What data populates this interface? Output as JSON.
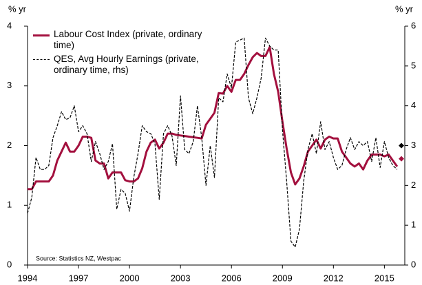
{
  "chart_data": {
    "type": "line",
    "ylabel": "% yr",
    "y2label": "% yr",
    "source": "Source: Statistics NZ, Westpac",
    "x": [
      1994,
      1994.25,
      1994.5,
      1994.75,
      1995,
      1995.25,
      1995.5,
      1995.75,
      1996,
      1996.25,
      1996.5,
      1996.75,
      1997,
      1997.25,
      1997.5,
      1997.75,
      1998,
      1998.25,
      1998.5,
      1998.75,
      1999,
      1999.25,
      1999.5,
      1999.75,
      2000,
      2000.25,
      2000.5,
      2000.75,
      2001,
      2001.25,
      2001.5,
      2001.75,
      2002,
      2002.25,
      2002.5,
      2002.75,
      2003,
      2003.25,
      2003.5,
      2003.75,
      2004,
      2004.25,
      2004.5,
      2004.75,
      2005,
      2005.25,
      2005.5,
      2005.75,
      2006,
      2006.25,
      2006.5,
      2006.75,
      2007,
      2007.25,
      2007.5,
      2007.75,
      2008,
      2008.25,
      2008.5,
      2008.75,
      2009,
      2009.25,
      2009.5,
      2009.75,
      2010,
      2010.25,
      2010.5,
      2010.75,
      2011,
      2011.25,
      2011.5,
      2011.75,
      2012,
      2012.25,
      2012.5,
      2012.75,
      2013,
      2013.25,
      2013.5,
      2013.75,
      2014,
      2014.25,
      2014.5,
      2014.75,
      2015,
      2015.25,
      2015.5,
      2015.75
    ],
    "series": [
      {
        "name": "Labour Cost Index (private, ordinary time)",
        "color": "#a3103e",
        "style": "solid",
        "axis": "y",
        "values": [
          1.27,
          1.27,
          1.4,
          1.4,
          1.4,
          1.4,
          1.5,
          1.75,
          1.9,
          2.05,
          1.9,
          1.9,
          2.0,
          2.15,
          2.15,
          2.13,
          1.75,
          1.7,
          1.7,
          1.45,
          1.55,
          1.55,
          1.55,
          1.42,
          1.4,
          1.4,
          1.45,
          1.62,
          1.9,
          2.05,
          2.1,
          1.95,
          2.05,
          2.2,
          2.2,
          2.18,
          2.17,
          2.16,
          2.15,
          2.14,
          2.13,
          2.12,
          2.35,
          2.45,
          2.55,
          2.88,
          2.87,
          3.0,
          2.9,
          3.1,
          3.1,
          3.2,
          3.35,
          3.48,
          3.55,
          3.5,
          3.5,
          3.65,
          3.2,
          2.9,
          2.4,
          1.95,
          1.55,
          1.35,
          1.45,
          1.65,
          1.9,
          2.0,
          2.1,
          1.95,
          2.1,
          2.15,
          2.12,
          2.12,
          1.9,
          1.8,
          1.7,
          1.65,
          1.7,
          1.6,
          1.75,
          1.85,
          1.85,
          1.85,
          1.82,
          1.85,
          1.75,
          1.65
        ]
      },
      {
        "name": "QES, Avg Hourly Earnings (private, ordinary time, rhs)",
        "color": "#000000",
        "style": "dashed",
        "axis": "y2",
        "values": [
          1.3,
          1.7,
          2.7,
          2.4,
          2.4,
          2.5,
          3.2,
          3.5,
          3.85,
          3.65,
          3.7,
          4.0,
          3.35,
          3.5,
          3.3,
          2.6,
          3.1,
          2.8,
          2.4,
          2.6,
          3.05,
          1.4,
          1.9,
          1.8,
          1.35,
          2.2,
          2.8,
          3.5,
          3.35,
          3.3,
          3.05,
          1.65,
          3.3,
          3.5,
          3.25,
          2.5,
          4.25,
          2.9,
          2.8,
          3.1,
          4.0,
          3.2,
          2.0,
          3.0,
          2.2,
          4.2,
          4.1,
          4.8,
          4.45,
          5.6,
          5.65,
          5.7,
          4.2,
          3.8,
          4.2,
          4.7,
          5.7,
          5.5,
          5.4,
          5.4,
          3.4,
          2.1,
          0.6,
          0.45,
          0.9,
          2.1,
          2.9,
          3.3,
          2.8,
          3.6,
          2.9,
          3.1,
          2.7,
          2.4,
          2.5,
          2.9,
          3.2,
          2.9,
          3.1,
          3.0,
          3.1,
          2.6,
          3.2,
          2.45,
          3.1,
          2.7,
          2.5,
          2.4
        ]
      }
    ],
    "markers": [
      {
        "x": 2016.0,
        "value": 3.0,
        "axis": "y2",
        "color": "#000000"
      },
      {
        "x": 2016.0,
        "value": 1.78,
        "axis": "y",
        "color": "#a3103e"
      }
    ],
    "xlim": [
      1994,
      2016.2
    ],
    "xticks": [
      1994,
      1997,
      2000,
      2003,
      2006,
      2009,
      2012,
      2015
    ],
    "ylim": [
      0,
      4
    ],
    "yticks": [
      0,
      1,
      2,
      3,
      4
    ],
    "y2lim": [
      0,
      6
    ],
    "y2ticks": [
      0,
      1,
      2,
      3,
      4,
      5,
      6
    ],
    "grid": false,
    "legend": "upper left"
  }
}
